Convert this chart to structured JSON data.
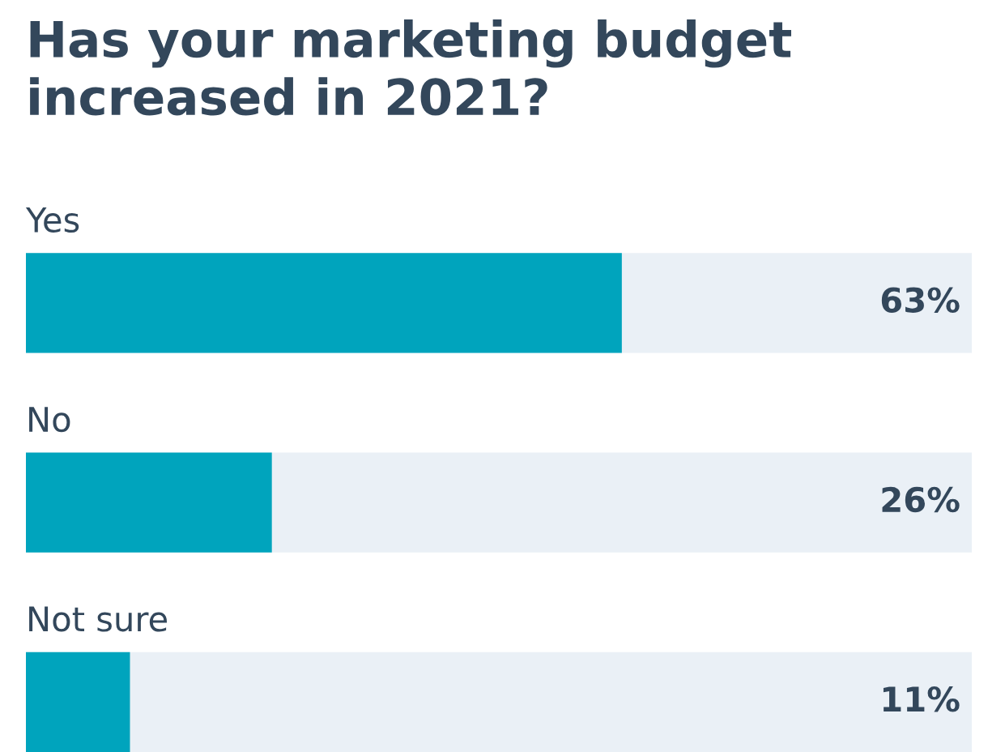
{
  "chart_data": {
    "type": "bar",
    "orientation": "horizontal",
    "title": "Has your marketing budget\nincreased in 2021?",
    "categories": [
      "Yes",
      "No",
      "Not sure"
    ],
    "values": [
      63,
      26,
      11
    ],
    "value_labels": [
      "63%",
      "26%",
      "11%"
    ],
    "color": "#00a4bd",
    "xlim": [
      0,
      100
    ],
    "tick_labels": false
  }
}
